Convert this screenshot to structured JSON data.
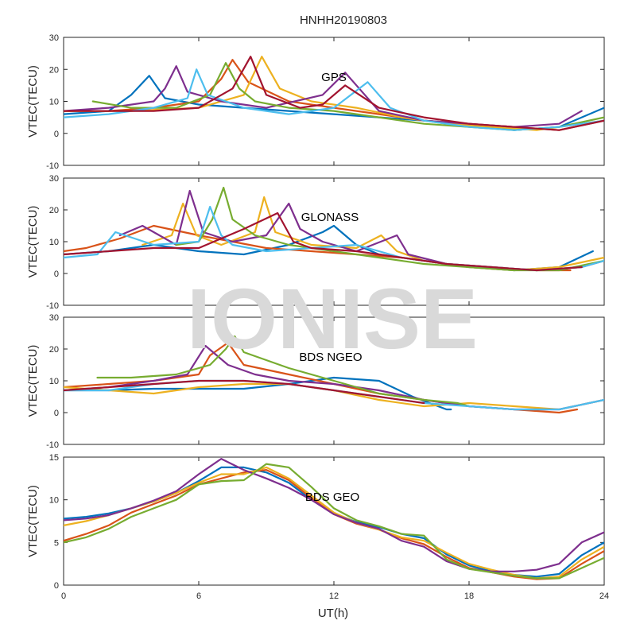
{
  "watermark": "IONISE",
  "chart_data": [
    {
      "type": "line",
      "title": "HNHH20190803",
      "label": "GPS",
      "ylabel": "VTEC(TECU)",
      "xlabel": "",
      "xlim": [
        0,
        24
      ],
      "ylim": [
        -10,
        30
      ],
      "yticks": [
        -10,
        0,
        10,
        20,
        30
      ],
      "xticks": [
        0,
        6,
        12,
        18,
        24
      ],
      "xtick_labels_visible": false,
      "grid": false,
      "series": [
        {
          "color": "#0072BD",
          "x": [
            0,
            2,
            3,
            3.8,
            4.5,
            6,
            8,
            10,
            12,
            14,
            16,
            18,
            20,
            22,
            24
          ],
          "y": [
            6,
            7,
            12,
            18,
            11,
            9,
            8,
            7,
            6,
            5,
            4,
            3,
            1,
            2,
            8
          ]
        },
        {
          "color": "#D95319",
          "x": [
            0,
            2,
            4,
            6,
            7,
            7.5,
            8.2,
            10,
            12,
            14,
            16,
            18,
            20,
            22,
            24
          ],
          "y": [
            7,
            7,
            8,
            10,
            17,
            23,
            16,
            10,
            8,
            6,
            4,
            3,
            2,
            1,
            4
          ]
        },
        {
          "color": "#EDB120",
          "x": [
            0,
            3,
            6,
            8,
            8.8,
            9.6,
            11,
            13,
            15,
            17,
            19,
            21,
            23,
            24
          ],
          "y": [
            7,
            7,
            8,
            12,
            24,
            14,
            10,
            8,
            5,
            3,
            2,
            1,
            3,
            4
          ]
        },
        {
          "color": "#7E2F8E",
          "x": [
            0,
            2,
            4,
            4.5,
            5,
            5.5,
            7,
            9,
            11.5,
            12.5,
            14,
            16,
            18,
            20,
            22,
            23
          ],
          "y": [
            7,
            8,
            10,
            14,
            21,
            13,
            10,
            8,
            12,
            19,
            7,
            4,
            3,
            2,
            3,
            7
          ]
        },
        {
          "color": "#77AC30",
          "x": [
            1.3,
            3,
            5,
            6.5,
            7.2,
            7.8,
            8.5,
            10,
            12,
            14,
            16,
            18,
            20,
            22,
            24
          ],
          "y": [
            10,
            8,
            8,
            12,
            22,
            14,
            10,
            8,
            7,
            5,
            3,
            2,
            1,
            2,
            5
          ]
        },
        {
          "color": "#4DBEEE",
          "x": [
            0,
            2,
            4,
            5.5,
            5.9,
            6.4,
            8,
            10,
            12,
            13.5,
            14.5,
            16,
            18,
            20,
            22,
            24
          ],
          "y": [
            5,
            6,
            8,
            11,
            20,
            12,
            8,
            6,
            8,
            16,
            8,
            4,
            2,
            1,
            2,
            4
          ]
        },
        {
          "color": "#A2142F",
          "x": [
            0,
            2,
            4,
            6,
            7.5,
            8.3,
            9,
            10.5,
            11.5,
            12.5,
            14,
            16,
            18,
            20,
            22,
            24
          ],
          "y": [
            7,
            7,
            7,
            8,
            14,
            24,
            12,
            8,
            9,
            15,
            8,
            5,
            3,
            2,
            1,
            4
          ]
        }
      ]
    },
    {
      "type": "line",
      "label": "GLONASS",
      "ylabel": "VTEC(TECU)",
      "xlabel": "",
      "xlim": [
        0,
        24
      ],
      "ylim": [
        -10,
        30
      ],
      "yticks": [
        -10,
        0,
        10,
        20,
        30
      ],
      "xticks": [
        0,
        6,
        12,
        18,
        24
      ],
      "xtick_labels_visible": false,
      "grid": false,
      "series": [
        {
          "color": "#0072BD",
          "x": [
            0,
            2,
            4,
            6,
            8,
            10,
            11.5,
            12,
            13,
            14,
            16,
            18,
            20,
            22,
            23.5
          ],
          "y": [
            6,
            7,
            9,
            7,
            6,
            9,
            13,
            15,
            9,
            6,
            4,
            2,
            1,
            2,
            7
          ]
        },
        {
          "color": "#D95319",
          "x": [
            0,
            1,
            2.5,
            4,
            6,
            7.5,
            9,
            11,
            13,
            15,
            17,
            19,
            21,
            22.5
          ],
          "y": [
            7,
            8,
            11,
            15,
            12,
            10,
            8,
            7,
            6,
            5,
            3,
            2,
            1,
            1
          ]
        },
        {
          "color": "#EDB120",
          "x": [
            3.5,
            4.8,
            5.3,
            5.9,
            7,
            8.5,
            8.9,
            9.4,
            11,
            13,
            14.1,
            14.8,
            16,
            18,
            20,
            22,
            24
          ],
          "y": [
            9,
            12,
            22,
            12,
            9,
            13,
            24,
            13,
            9,
            8,
            12,
            7,
            4,
            2,
            1,
            2,
            5
          ]
        },
        {
          "color": "#7E2F8E",
          "x": [
            2.5,
            3.5,
            5,
            5.6,
            6.2,
            7.5,
            9,
            10,
            10.5,
            11.5,
            13,
            14.8,
            15.3,
            17,
            19,
            21,
            23,
            24
          ],
          "y": [
            12,
            15,
            9,
            26,
            13,
            10,
            12,
            22,
            14,
            10,
            7,
            12,
            6,
            3,
            2,
            1,
            2,
            4
          ]
        },
        {
          "color": "#77AC30",
          "x": [
            5,
            6,
            6.6,
            7.1,
            7.5,
            8.5,
            10,
            12,
            14,
            16,
            18,
            20,
            22,
            24
          ],
          "y": [
            9,
            10,
            17,
            27,
            17,
            12,
            9,
            7,
            5,
            3,
            2,
            1,
            1,
            4
          ]
        },
        {
          "color": "#4DBEEE",
          "x": [
            0,
            1.5,
            2.3,
            4,
            6,
            6.5,
            7,
            7.5,
            9,
            11,
            13,
            15,
            17,
            19,
            21,
            23,
            24
          ],
          "y": [
            5,
            6,
            13,
            9,
            10,
            21,
            12,
            9,
            7,
            8,
            9,
            5,
            3,
            2,
            1,
            2,
            4
          ]
        },
        {
          "color": "#A2142F",
          "x": [
            0,
            2,
            4,
            6,
            8,
            9.5,
            10.2,
            11,
            13,
            15,
            17,
            19,
            21,
            23
          ],
          "y": [
            6,
            7,
            8,
            8,
            14,
            19,
            10,
            8,
            7,
            5,
            3,
            2,
            1,
            2
          ]
        }
      ]
    },
    {
      "type": "line",
      "label": "BDS NGEO",
      "ylabel": "VTEC(TECU)",
      "xlabel": "",
      "xlim": [
        0,
        24
      ],
      "ylim": [
        -10,
        30
      ],
      "yticks": [
        -10,
        0,
        10,
        20,
        30
      ],
      "xticks": [
        0,
        6,
        12,
        18,
        24
      ],
      "xtick_labels_visible": false,
      "grid": false,
      "series": [
        {
          "color": "#0072BD",
          "x": [
            0,
            2,
            4,
            6,
            8,
            10,
            12,
            14,
            15.5,
            17,
            17.2
          ],
          "y": [
            7,
            7,
            7.5,
            7.5,
            7.5,
            9,
            11,
            10,
            5,
            1,
            1
          ]
        },
        {
          "color": "#D95319",
          "x": [
            0,
            2,
            4,
            6,
            6.5,
            7.3,
            8,
            10,
            12,
            14,
            16,
            18,
            20,
            22,
            22.8
          ],
          "y": [
            8,
            9,
            10,
            12,
            18,
            22,
            15,
            12,
            9,
            6,
            4,
            2,
            1,
            0,
            1
          ]
        },
        {
          "color": "#EDB120",
          "x": [
            0,
            2,
            4,
            5,
            6,
            8,
            10,
            12,
            14,
            16,
            18,
            20,
            22,
            24
          ],
          "y": [
            8,
            7,
            6,
            7,
            8,
            9,
            9,
            7,
            4,
            2,
            3,
            2,
            1,
            4
          ]
        },
        {
          "color": "#7E2F8E",
          "x": [
            0,
            2,
            4,
            5.5,
            6.3,
            7.3,
            8.5,
            10,
            12,
            14,
            16,
            18,
            20,
            22,
            24
          ],
          "y": [
            7,
            8,
            10,
            12,
            21,
            15,
            12,
            10,
            9,
            7,
            4,
            2,
            1,
            1,
            4
          ]
        },
        {
          "color": "#77AC30",
          "x": [
            1.5,
            3,
            5,
            6.5,
            7.2,
            7.6,
            8,
            10,
            12,
            14,
            16,
            17.5,
            18
          ],
          "y": [
            11,
            11,
            12,
            15,
            20,
            24,
            19,
            14,
            10,
            6,
            4,
            3,
            2
          ]
        },
        {
          "color": "#4DBEEE",
          "x": [
            0,
            2,
            4,
            6,
            8,
            10,
            12,
            14,
            16,
            18,
            20,
            22,
            24
          ],
          "y": [
            7,
            7,
            9,
            10,
            10,
            9,
            7,
            5,
            3,
            2,
            1,
            1,
            4
          ]
        },
        {
          "color": "#A2142F",
          "x": [
            0,
            2,
            4,
            6,
            8,
            10,
            12,
            14,
            16
          ],
          "y": [
            7,
            8,
            9,
            10,
            10,
            9,
            7,
            5,
            3
          ]
        }
      ]
    },
    {
      "type": "line",
      "label": "BDS GEO",
      "ylabel": "VTEC(TECU)",
      "xlabel": "UT(h)",
      "xlim": [
        0,
        24
      ],
      "ylim": [
        0,
        15
      ],
      "yticks": [
        0,
        5,
        10,
        15
      ],
      "xticks": [
        0,
        6,
        12,
        18,
        24
      ],
      "xtick_labels_visible": true,
      "grid": false,
      "series": [
        {
          "color": "#0072BD",
          "x": [
            0,
            1,
            2,
            3,
            4,
            5,
            6,
            7,
            8,
            9,
            10,
            11,
            12,
            13,
            14,
            15,
            16,
            17,
            18,
            19,
            20,
            21,
            22,
            23,
            24
          ],
          "y": [
            7.8,
            8,
            8.4,
            9,
            9.8,
            10.8,
            12.2,
            13.8,
            13.8,
            13.2,
            12,
            10,
            8.4,
            7.4,
            6.8,
            6,
            5.5,
            3.6,
            2.3,
            1.6,
            1.2,
            1,
            1.3,
            3.5,
            5
          ]
        },
        {
          "color": "#D95319",
          "x": [
            0,
            1,
            2,
            3,
            4,
            5,
            6,
            7,
            8,
            9,
            10,
            11,
            12,
            13,
            14,
            15,
            16,
            17,
            18,
            19,
            20,
            21,
            22,
            23,
            24
          ],
          "y": [
            5.2,
            6,
            7,
            8.5,
            9.5,
            10.5,
            11.8,
            12.5,
            13.2,
            13.5,
            12.3,
            10.2,
            8.3,
            7.2,
            6.5,
            5.5,
            4.8,
            3.3,
            2,
            1.5,
            1,
            0.7,
            0.8,
            2.5,
            4
          ]
        },
        {
          "color": "#EDB120",
          "x": [
            0,
            1,
            2,
            3,
            4,
            5,
            6,
            7,
            8,
            9,
            10,
            11,
            12,
            13,
            14,
            15,
            16,
            17,
            18,
            19,
            20,
            21,
            22,
            23,
            24
          ],
          "y": [
            7,
            7.5,
            8.2,
            9,
            9.8,
            10.8,
            12,
            13,
            13,
            13.8,
            12.5,
            10.5,
            8.5,
            7.3,
            6.5,
            5.6,
            5.2,
            3.8,
            2.5,
            1.8,
            1.2,
            0.8,
            1,
            3,
            4.5
          ]
        },
        {
          "color": "#7E2F8E",
          "x": [
            0,
            1,
            2,
            3,
            4,
            5,
            6,
            7,
            8,
            9,
            10,
            11,
            12,
            13,
            14,
            15,
            16,
            17,
            18,
            19,
            20,
            21,
            22,
            23,
            24
          ],
          "y": [
            7.6,
            7.8,
            8.2,
            9,
            9.9,
            11,
            13,
            14.8,
            13.5,
            12.5,
            11.4,
            10,
            8.3,
            7.3,
            6.6,
            5.2,
            4.5,
            2.8,
            1.9,
            1.6,
            1.6,
            1.8,
            2.5,
            5,
            6.2
          ]
        },
        {
          "color": "#77AC30",
          "x": [
            0,
            1,
            2,
            3,
            4,
            5,
            6,
            7,
            8,
            9,
            10,
            11,
            12,
            13,
            14,
            15,
            16,
            17,
            18,
            19,
            20,
            21,
            22,
            23,
            24
          ],
          "y": [
            5,
            5.6,
            6.6,
            8,
            9,
            10,
            11.8,
            12.2,
            12.3,
            14.2,
            13.8,
            11.5,
            9,
            7.6,
            6.9,
            6,
            5.8,
            3,
            1.9,
            1.5,
            1.1,
            0.8,
            0.8,
            2,
            3.2
          ]
        }
      ]
    }
  ]
}
